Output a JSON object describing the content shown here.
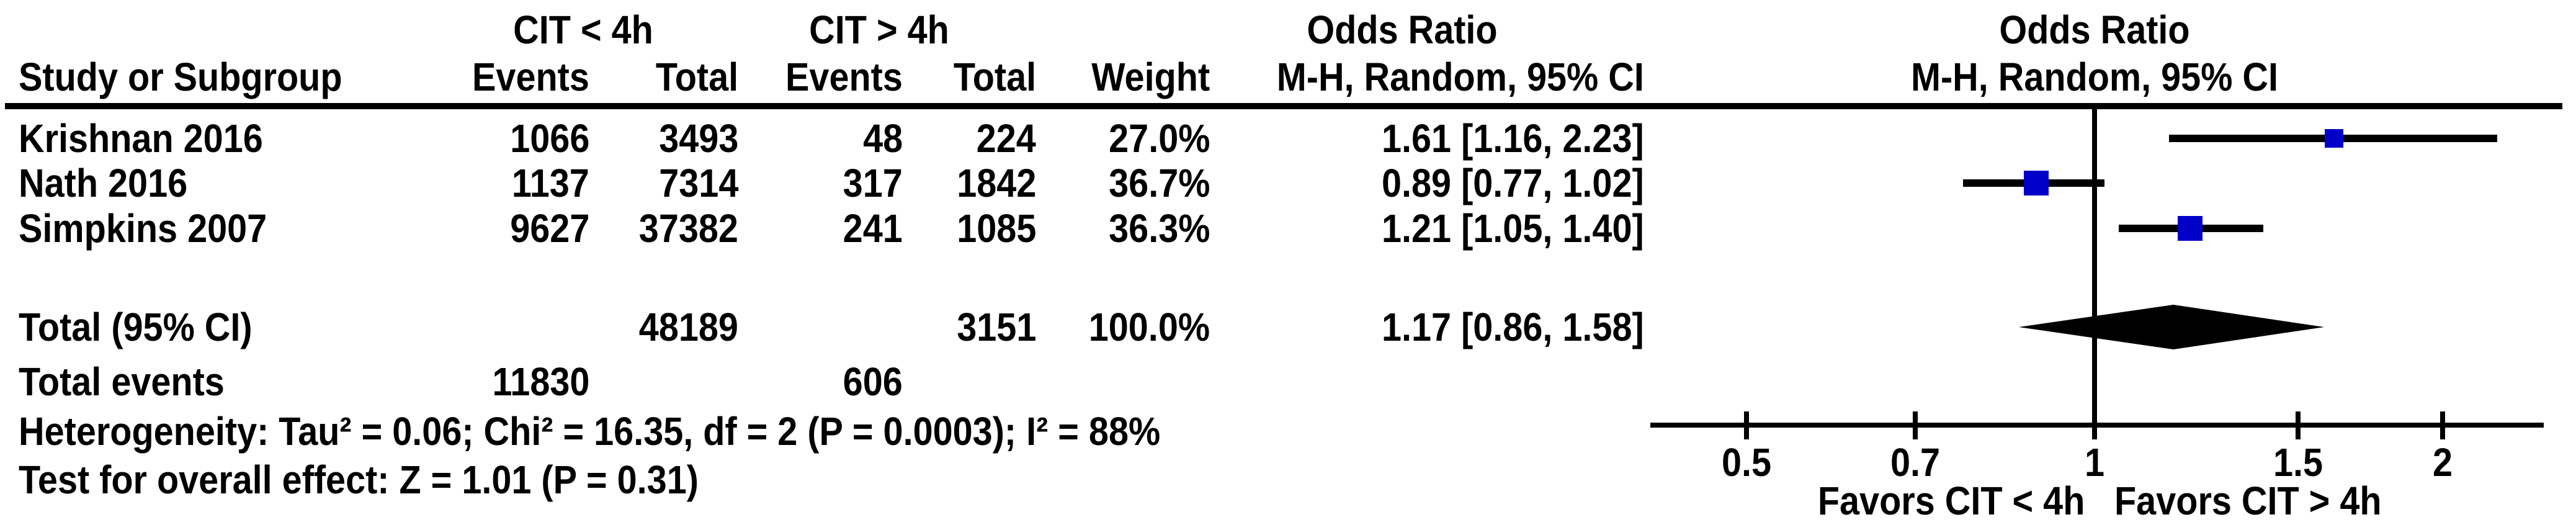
{
  "figure": {
    "group1_header": "CIT < 4h",
    "group2_header": "CIT > 4h",
    "or_header": "Odds Ratio",
    "columns": {
      "study": "Study or Subgroup",
      "events": "Events",
      "total": "Total",
      "weight": "Weight",
      "method": "M-H, Random, 95% CI"
    }
  },
  "chart_data": {
    "type": "forest",
    "measure": "Odds Ratio",
    "method": "M-H, Random, 95% CI",
    "scale": "log",
    "x_ticks": [
      {
        "value": 0.5,
        "label": "0.5"
      },
      {
        "value": 0.7,
        "label": "0.7"
      },
      {
        "value": 1,
        "label": "1"
      },
      {
        "value": 1.5,
        "label": "1.5"
      },
      {
        "value": 2,
        "label": "2"
      }
    ],
    "null_value": 1,
    "favors_left": "Favors CIT < 4h",
    "favors_right": "Favors CIT > 4h",
    "marker_color": "#0000C8",
    "line_color": "#000000",
    "studies": [
      {
        "name": "Krishnan 2016",
        "events_lt4h": "1066",
        "total_lt4h": "3493",
        "events_gt4h": "48",
        "total_gt4h": "224",
        "weight_label": "27.0%",
        "weight_pct": 27.0,
        "or": 1.61,
        "ci_low": 1.16,
        "ci_high": 2.23,
        "or_ci_label": "1.61 [1.16, 2.23]"
      },
      {
        "name": "Nath 2016",
        "events_lt4h": "1137",
        "total_lt4h": "7314",
        "events_gt4h": "317",
        "total_gt4h": "1842",
        "weight_label": "36.7%",
        "weight_pct": 36.7,
        "or": 0.89,
        "ci_low": 0.77,
        "ci_high": 1.02,
        "or_ci_label": "0.89 [0.77, 1.02]"
      },
      {
        "name": "Simpkins 2007",
        "events_lt4h": "9627",
        "total_lt4h": "37382",
        "events_gt4h": "241",
        "total_gt4h": "1085",
        "weight_label": "36.3%",
        "weight_pct": 36.3,
        "or": 1.21,
        "ci_low": 1.05,
        "ci_high": 1.4,
        "or_ci_label": "1.21 [1.05, 1.40]"
      }
    ],
    "total": {
      "label": "Total (95% CI)",
      "total_lt4h": "48189",
      "total_gt4h": "3151",
      "weight_label": "100.0%",
      "or": 1.17,
      "ci_low": 0.86,
      "ci_high": 1.58,
      "or_ci_label": "1.17 [0.86, 1.58]"
    },
    "total_events": {
      "label": "Total events",
      "events_lt4h": "11830",
      "events_gt4h": "606"
    },
    "heterogeneity": "Heterogeneity: Tau² = 0.06; Chi² = 16.35, df = 2 (P = 0.0003); I² = 88%",
    "overall_effect": "Test for overall effect: Z = 1.01 (P = 0.31)"
  }
}
